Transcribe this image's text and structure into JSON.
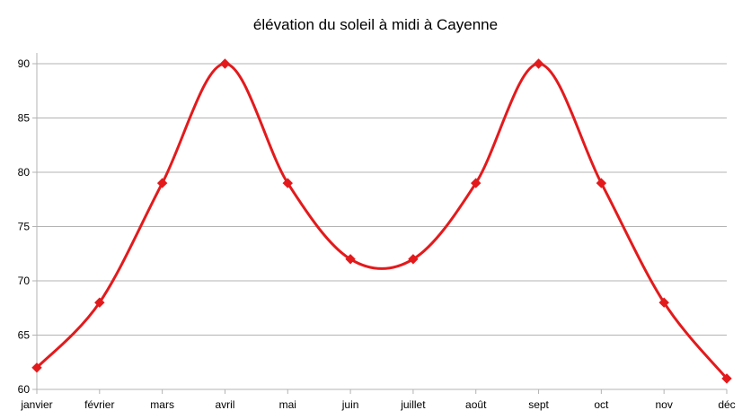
{
  "chart_data": {
    "type": "line",
    "title": "élévation du soleil à midi à Cayenne",
    "xlabel": "",
    "ylabel": "",
    "categories": [
      "janvier",
      "février",
      "mars",
      "avril",
      "mai",
      "juin",
      "juillet",
      "août",
      "sept",
      "oct",
      "nov",
      "déc"
    ],
    "series": [
      {
        "values": [
          62,
          68,
          79,
          90,
          79,
          72,
          72,
          79,
          90,
          79,
          68,
          61
        ]
      }
    ],
    "ylim": [
      60,
      90
    ],
    "yticks": [
      60,
      65,
      70,
      75,
      80,
      85,
      90
    ],
    "grid": true,
    "smooth": true,
    "marker": "diamond",
    "legend": "none",
    "colors": {
      "series": "#e31a1c",
      "grid": "#b3b3b3",
      "axis": "#b3b3b3"
    }
  }
}
